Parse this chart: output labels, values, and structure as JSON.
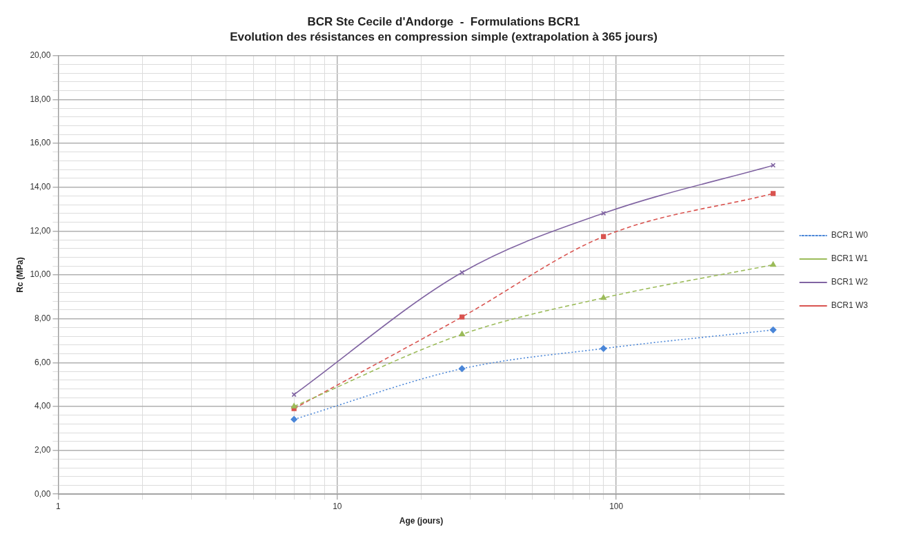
{
  "chart_data": {
    "type": "line",
    "title": "BCR Ste Cecile d'Andorge  -  Formulations BCR1",
    "subtitle": "Evolution des résistances en compression simple (extrapolation à 365 jours)",
    "xlabel": "Age (jours)",
    "ylabel": "Rc (MPa)",
    "x": [
      7,
      28,
      90,
      365
    ],
    "series": [
      {
        "name": "BCR1 W0",
        "color": "#4a86d8",
        "line_style": "dotted",
        "marker": "diamond",
        "values": [
          3.41,
          5.72,
          6.64,
          7.49
        ]
      },
      {
        "name": "BCR1 W1",
        "color": "#9bbb59",
        "line_style": "dashed",
        "marker": "triangle",
        "values": [
          4.0,
          7.29,
          8.95,
          10.46
        ]
      },
      {
        "name": "BCR1 W2",
        "color": "#8064a2",
        "line_style": "solid",
        "marker": "cross",
        "values": [
          4.54,
          10.11,
          12.81,
          15.0
        ]
      },
      {
        "name": "BCR1 W3",
        "color": "#d9534f",
        "line_style": "dashed",
        "marker": "square",
        "values": [
          3.9,
          8.08,
          11.75,
          13.71
        ]
      }
    ],
    "log": "x",
    "xlim": [
      1,
      400
    ],
    "xticks": [
      1,
      {
        "value": 2,
        "label": null
      },
      {
        "value": 3,
        "label": null
      },
      {
        "value": 4,
        "label": null
      },
      {
        "value": 5,
        "label": null
      },
      {
        "value": 6,
        "label": null
      },
      {
        "value": 7,
        "label": null
      },
      {
        "value": 8,
        "label": null
      },
      {
        "value": 9,
        "label": null
      },
      10,
      {
        "value": 20,
        "label": null
      },
      {
        "value": 30,
        "label": null
      },
      {
        "value": 40,
        "label": null
      },
      {
        "value": 50,
        "label": null
      },
      {
        "value": 60,
        "label": null
      },
      {
        "value": 70,
        "label": null
      },
      {
        "value": 80,
        "label": null
      },
      {
        "value": 90,
        "label": null
      },
      100,
      {
        "value": 200,
        "label": null
      },
      {
        "value": 300,
        "label": null
      }
    ],
    "ylim": [
      0,
      20
    ],
    "yticks": [
      {
        "value": 0,
        "label": "0,00"
      },
      {
        "value": 0.4,
        "label": null
      },
      {
        "value": 0.8,
        "label": null
      },
      {
        "value": 1.2,
        "label": null
      },
      {
        "value": 1.6,
        "label": null
      },
      {
        "value": 2,
        "label": "2,00"
      },
      {
        "value": 2.4,
        "label": null
      },
      {
        "value": 2.8,
        "label": null
      },
      {
        "value": 3.2,
        "label": null
      },
      {
        "value": 3.6,
        "label": null
      },
      {
        "value": 4,
        "label": "4,00"
      },
      {
        "value": 4.4,
        "label": null
      },
      {
        "value": 4.8,
        "label": null
      },
      {
        "value": 5.2,
        "label": null
      },
      {
        "value": 5.6,
        "label": null
      },
      {
        "value": 6,
        "label": "6,00"
      },
      {
        "value": 6.4,
        "label": null
      },
      {
        "value": 6.8,
        "label": null
      },
      {
        "value": 7.2,
        "label": null
      },
      {
        "value": 7.6,
        "label": null
      },
      {
        "value": 8,
        "label": "8,00"
      },
      {
        "value": 8.4,
        "label": null
      },
      {
        "value": 8.8,
        "label": null
      },
      {
        "value": 9.2,
        "label": null
      },
      {
        "value": 9.6,
        "label": null
      },
      {
        "value": 10,
        "label": "10,00"
      },
      {
        "value": 10.4,
        "label": null
      },
      {
        "value": 10.8,
        "label": null
      },
      {
        "value": 11.2,
        "label": null
      },
      {
        "value": 11.6,
        "label": null
      },
      {
        "value": 12,
        "label": "12,00"
      },
      {
        "value": 12.4,
        "label": null
      },
      {
        "value": 12.8,
        "label": null
      },
      {
        "value": 13.2,
        "label": null
      },
      {
        "value": 13.6,
        "label": null
      },
      {
        "value": 14,
        "label": "14,00"
      },
      {
        "value": 14.4,
        "label": null
      },
      {
        "value": 14.8,
        "label": null
      },
      {
        "value": 15.2,
        "label": null
      },
      {
        "value": 15.6,
        "label": null
      },
      {
        "value": 16,
        "label": "16,00"
      },
      {
        "value": 16.4,
        "label": null
      },
      {
        "value": 16.8,
        "label": null
      },
      {
        "value": 17.2,
        "label": null
      },
      {
        "value": 17.6,
        "label": null
      },
      {
        "value": 18,
        "label": "18,00"
      },
      {
        "value": 18.4,
        "label": null
      },
      {
        "value": 18.8,
        "label": null
      },
      {
        "value": 19.2,
        "label": null
      },
      {
        "value": 19.6,
        "label": null
      },
      {
        "value": 20,
        "label": "20,00"
      }
    ],
    "grid": true,
    "legend": "right"
  }
}
